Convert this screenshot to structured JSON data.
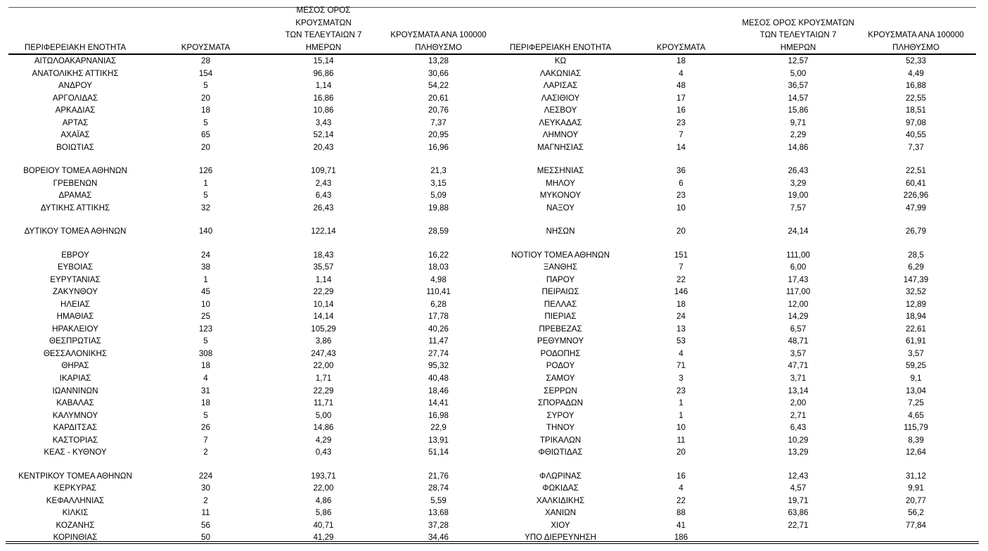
{
  "headers": {
    "left": {
      "region": [
        "ΠΕΡΙΦΕΡΕΙΑΚΗ ΕΝΟΤΗΤΑ"
      ],
      "cases": [
        "ΚΡΟΥΣΜΑΤΑ"
      ],
      "avg7": [
        "ΜΕΣΟΣ ΟΡΟΣ ΚΡΟΥΣΜΑΤΩΝ",
        "ΤΩΝ ΤΕΛΕΥΤΑΙΩΝ 7",
        "ΗΜΕΡΩΝ"
      ],
      "per100k": [
        "ΚΡΟΥΣΜΑΤΑ ΑΝΑ 100000",
        "ΠΛΗΘΥΣΜΟ"
      ]
    },
    "right": {
      "region": [
        "ΠΕΡΙΦΕΡΕΙΑΚΗ ΕΝΟΤΗΤΑ"
      ],
      "cases": [
        "ΚΡΟΥΣΜΑΤΑ"
      ],
      "avg7": [
        "ΜΕΣΟΣ ΟΡΟΣ ΚΡΟΥΣΜΑΤΩΝ",
        "ΤΩΝ ΤΕΛΕΥΤΑΙΩΝ 7",
        "ΗΜΕΡΩΝ"
      ],
      "per100k": [
        "ΚΡΟΥΣΜΑΤΑ ΑΝΑ 100000",
        "ΠΛΗΘΥΣΜΟ"
      ]
    }
  },
  "rows": [
    {
      "left": [
        "ΑΙΤΩΛΟΑΚΑΡΝΑΝΙΑΣ",
        "28",
        "15,14",
        "13,28"
      ],
      "right": [
        "ΚΩ",
        "18",
        "12,57",
        "52,33"
      ]
    },
    {
      "left": [
        "ΑΝΑΤΟΛΙΚΗΣ ΑΤΤΙΚΗΣ",
        "154",
        "96,86",
        "30,66"
      ],
      "right": [
        "ΛΑΚΩΝΙΑΣ",
        "4",
        "5,00",
        "4,49"
      ]
    },
    {
      "left": [
        "ΑΝΔΡΟΥ",
        "5",
        "1,14",
        "54,22"
      ],
      "right": [
        "ΛΑΡΙΣΑΣ",
        "48",
        "36,57",
        "16,88"
      ]
    },
    {
      "left": [
        "ΑΡΓΟΛΙΔΑΣ",
        "20",
        "16,86",
        "20,61"
      ],
      "right": [
        "ΛΑΣΙΘΙΟΥ",
        "17",
        "14,57",
        "22,55"
      ]
    },
    {
      "left": [
        "ΑΡΚΑΔΙΑΣ",
        "18",
        "10,86",
        "20,76"
      ],
      "right": [
        "ΛΕΣΒΟΥ",
        "16",
        "15,86",
        "18,51"
      ]
    },
    {
      "left": [
        "ΑΡΤΑΣ",
        "5",
        "3,43",
        "7,37"
      ],
      "right": [
        "ΛΕΥΚΑΔΑΣ",
        "23",
        "9,71",
        "97,08"
      ]
    },
    {
      "left": [
        "ΑΧΑΪΑΣ",
        "65",
        "52,14",
        "20,95"
      ],
      "right": [
        "ΛΗΜΝΟΥ",
        "7",
        "2,29",
        "40,55"
      ]
    },
    {
      "left": [
        "ΒΟΙΩΤΙΑΣ",
        "20",
        "20,43",
        "16,96"
      ],
      "right": [
        "ΜΑΓΝΗΣΙΑΣ",
        "14",
        "14,86",
        "7,37"
      ]
    },
    {
      "blank": true
    },
    {
      "left": [
        "ΒΟΡΕΙΟΥ ΤΟΜΕΑ ΑΘΗΝΩΝ",
        "126",
        "109,71",
        "21,3"
      ],
      "right": [
        "ΜΕΣΣΗΝΙΑΣ",
        "36",
        "26,43",
        "22,51"
      ]
    },
    {
      "left": [
        "ΓΡΕΒΕΝΩΝ",
        "1",
        "2,43",
        "3,15"
      ],
      "right": [
        "ΜΗΛΟΥ",
        "6",
        "3,29",
        "60,41"
      ]
    },
    {
      "left": [
        "ΔΡΑΜΑΣ",
        "5",
        "6,43",
        "5,09"
      ],
      "right": [
        "ΜΥΚΟΝΟΥ",
        "23",
        "19,00",
        "226,96"
      ]
    },
    {
      "left": [
        "ΔΥΤΙΚΗΣ ΑΤΤΙΚΗΣ",
        "32",
        "26,43",
        "19,88"
      ],
      "right": [
        "ΝΑΞΟΥ",
        "10",
        "7,57",
        "47,99"
      ]
    },
    {
      "blank": true
    },
    {
      "left": [
        "ΔΥΤΙΚΟΥ ΤΟΜΕΑ ΑΘΗΝΩΝ",
        "140",
        "122,14",
        "28,59"
      ],
      "right": [
        "ΝΗΣΩΝ",
        "20",
        "24,14",
        "26,79"
      ]
    },
    {
      "blank": true
    },
    {
      "left": [
        "ΕΒΡΟΥ",
        "24",
        "18,43",
        "16,22"
      ],
      "right": [
        "ΝΟΤΙΟΥ ΤΟΜΕΑ ΑΘΗΝΩΝ",
        "151",
        "111,00",
        "28,5"
      ]
    },
    {
      "left": [
        "ΕΥΒΟΙΑΣ",
        "38",
        "35,57",
        "18,03"
      ],
      "right": [
        "ΞΑΝΘΗΣ",
        "7",
        "6,00",
        "6,29"
      ]
    },
    {
      "left": [
        "ΕΥΡΥΤΑΝΙΑΣ",
        "1",
        "1,14",
        "4,98"
      ],
      "right": [
        "ΠΑΡΟΥ",
        "22",
        "17,43",
        "147,39"
      ]
    },
    {
      "left": [
        "ΖΑΚΥΝΘΟΥ",
        "45",
        "22,29",
        "110,41"
      ],
      "right": [
        "ΠΕΙΡΑΙΩΣ",
        "146",
        "117,00",
        "32,52"
      ]
    },
    {
      "left": [
        "ΗΛΕΙΑΣ",
        "10",
        "10,14",
        "6,28"
      ],
      "right": [
        "ΠΕΛΛΑΣ",
        "18",
        "12,00",
        "12,89"
      ]
    },
    {
      "left": [
        "ΗΜΑΘΙΑΣ",
        "25",
        "14,14",
        "17,78"
      ],
      "right": [
        "ΠΙΕΡΙΑΣ",
        "24",
        "14,29",
        "18,94"
      ]
    },
    {
      "left": [
        "ΗΡΑΚΛΕΙΟΥ",
        "123",
        "105,29",
        "40,26"
      ],
      "right": [
        "ΠΡΕΒΕΖΑΣ",
        "13",
        "6,57",
        "22,61"
      ]
    },
    {
      "left": [
        "ΘΕΣΠΡΩΤΙΑΣ",
        "5",
        "3,86",
        "11,47"
      ],
      "right": [
        "ΡΕΘΥΜΝΟΥ",
        "53",
        "48,71",
        "61,91"
      ]
    },
    {
      "left": [
        "ΘΕΣΣΑΛΟΝΙΚΗΣ",
        "308",
        "247,43",
        "27,74"
      ],
      "right": [
        "ΡΟΔΟΠΗΣ",
        "4",
        "3,57",
        "3,57"
      ]
    },
    {
      "left": [
        "ΘΗΡΑΣ",
        "18",
        "22,00",
        "95,32"
      ],
      "right": [
        "ΡΟΔΟΥ",
        "71",
        "47,71",
        "59,25"
      ]
    },
    {
      "left": [
        "ΙΚΑΡΙΑΣ",
        "4",
        "1,71",
        "40,48"
      ],
      "right": [
        "ΣΑΜΟΥ",
        "3",
        "3,71",
        "9,1"
      ]
    },
    {
      "left": [
        "ΙΩΑΝΝΙΝΩΝ",
        "31",
        "22,29",
        "18,46"
      ],
      "right": [
        "ΣΕΡΡΩΝ",
        "23",
        "13,14",
        "13,04"
      ]
    },
    {
      "left": [
        "ΚΑΒΑΛΑΣ",
        "18",
        "11,71",
        "14,41"
      ],
      "right": [
        "ΣΠΟΡΑΔΩΝ",
        "1",
        "2,00",
        "7,25"
      ]
    },
    {
      "left": [
        "ΚΑΛΥΜΝΟΥ",
        "5",
        "5,00",
        "16,98"
      ],
      "right": [
        "ΣΥΡΟΥ",
        "1",
        "2,71",
        "4,65"
      ]
    },
    {
      "left": [
        "ΚΑΡΔΙΤΣΑΣ",
        "26",
        "14,86",
        "22,9"
      ],
      "right": [
        "ΤΗΝΟΥ",
        "10",
        "6,43",
        "115,79"
      ]
    },
    {
      "left": [
        "ΚΑΣΤΟΡΙΑΣ",
        "7",
        "4,29",
        "13,91"
      ],
      "right": [
        "ΤΡΙΚΑΛΩΝ",
        "11",
        "10,29",
        "8,39"
      ]
    },
    {
      "left": [
        "ΚΕΑΣ - ΚΥΘΝΟΥ",
        "2",
        "0,43",
        "51,14"
      ],
      "right": [
        "ΦΘΙΩΤΙΔΑΣ",
        "20",
        "13,29",
        "12,64"
      ]
    },
    {
      "blank": true
    },
    {
      "left": [
        "ΚΕΝΤΡΙΚΟΥ ΤΟΜΕΑ ΑΘΗΝΩΝ",
        "224",
        "193,71",
        "21,76"
      ],
      "right": [
        "ΦΛΩΡΙΝΑΣ",
        "16",
        "12,43",
        "31,12"
      ]
    },
    {
      "left": [
        "ΚΕΡΚΥΡΑΣ",
        "30",
        "22,00",
        "28,74"
      ],
      "right": [
        "ΦΩΚΙΔΑΣ",
        "4",
        "4,57",
        "9,91"
      ]
    },
    {
      "left": [
        "ΚΕΦΑΛΛΗΝΙΑΣ",
        "2",
        "4,86",
        "5,59"
      ],
      "right": [
        "ΧΑΛΚΙΔΙΚΗΣ",
        "22",
        "19,71",
        "20,77"
      ]
    },
    {
      "left": [
        "ΚΙΛΚΙΣ",
        "11",
        "5,86",
        "13,68"
      ],
      "right": [
        "ΧΑΝΙΩΝ",
        "88",
        "63,86",
        "56,2"
      ]
    },
    {
      "left": [
        "ΚΟΖΑΝΗΣ",
        "56",
        "40,71",
        "37,28"
      ],
      "right": [
        "ΧΙΟΥ",
        "41",
        "22,71",
        "77,84"
      ]
    },
    {
      "left": [
        "ΚΟΡΙΝΘΙΑΣ",
        "50",
        "41,29",
        "34,46"
      ],
      "right": [
        "ΥΠΟ ΔΙΕΡΕΥΝΗΣΗ",
        "186",
        "",
        ""
      ]
    }
  ]
}
